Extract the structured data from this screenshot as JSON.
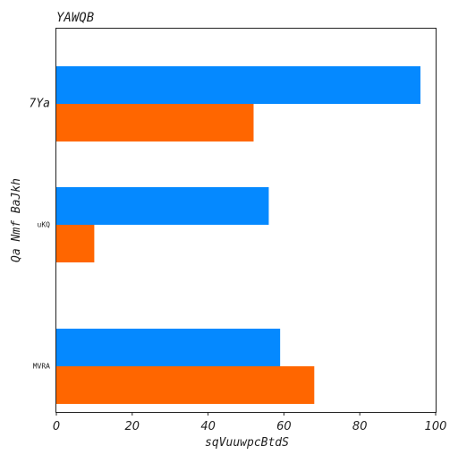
{
  "chart_data": {
    "type": "bar",
    "orientation": "horizontal",
    "title": "YAWQB",
    "xlabel": "sqVuuwpcBtdS",
    "ylabel": "Qa Nmf BaJkh",
    "categories": [
      "7Ya",
      "uKQ",
      "MVRA"
    ],
    "series": [
      {
        "color": "#0589ff",
        "values": [
          96,
          56,
          59
        ]
      },
      {
        "color": "#ff6600",
        "values": [
          52,
          10,
          68
        ]
      }
    ],
    "xlim": [
      0,
      100
    ],
    "xticks": [
      0,
      20,
      40,
      60,
      80,
      100
    ],
    "grid": false,
    "legend": "none"
  }
}
